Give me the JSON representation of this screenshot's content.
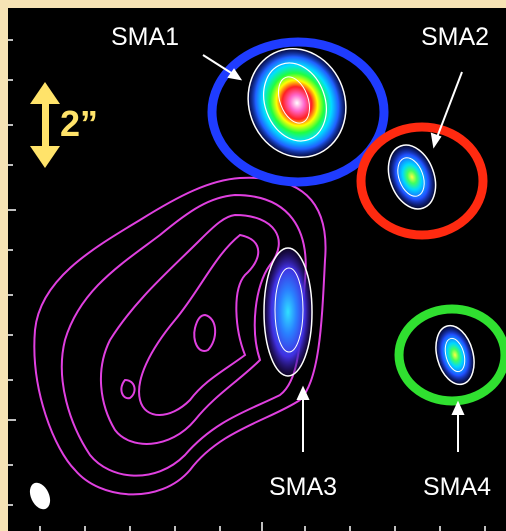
{
  "labels": [
    "SMA1",
    "SMA2",
    "SMA3",
    "SMA4"
  ],
  "scale_bar": "2”"
}
